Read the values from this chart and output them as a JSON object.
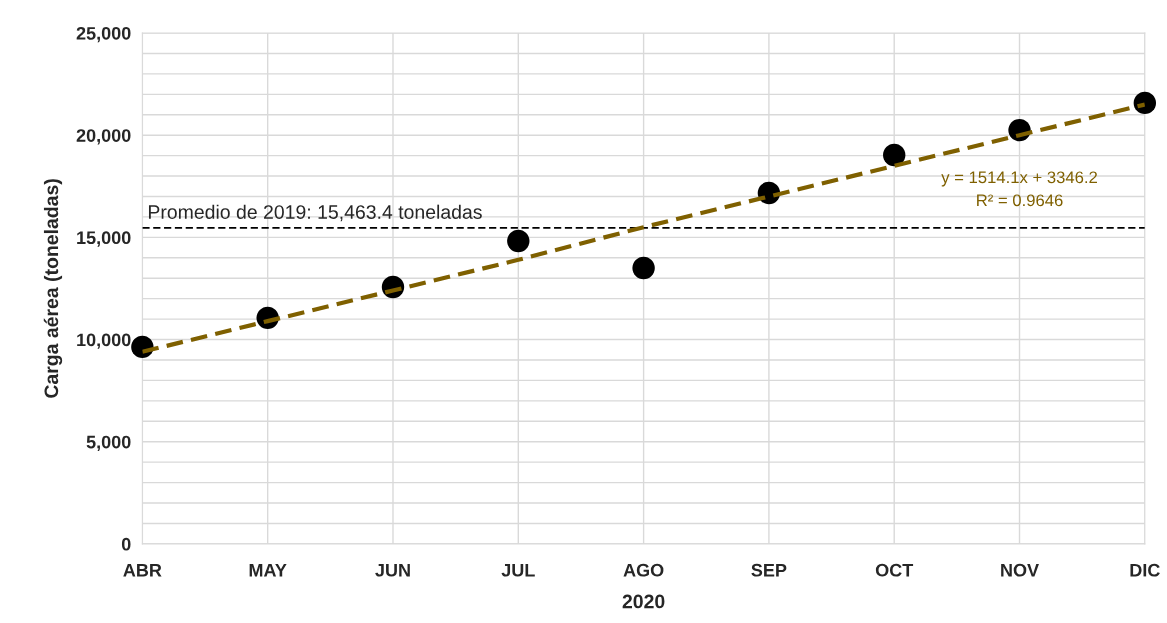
{
  "chart_data": {
    "type": "scatter",
    "xlabel": "2020",
    "ylabel": "Carga aérea (toneladas)",
    "categories": [
      "ABR",
      "MAY",
      "JUN",
      "JUL",
      "AGO",
      "SEP",
      "OCT",
      "NOV",
      "DIC"
    ],
    "series": [
      {
        "color": "#000000",
        "marker": "circle",
        "values": [
          9640,
          11060,
          12570,
          14820,
          13500,
          17170,
          19030,
          20250,
          21580
        ]
      },
      {
        "type": "line",
        "color": "#7f6000",
        "line_style": "dashed",
        "marker": "none",
        "values": [
          9400,
          10900,
          12400,
          13900,
          15500,
          17000,
          18500,
          20000,
          21500
        ]
      }
    ],
    "ylim": [
      0,
      25000
    ],
    "yticks": [
      {
        "value": 0,
        "label": "0"
      },
      {
        "value": 1000,
        "label": null
      },
      {
        "value": 2000,
        "label": null
      },
      {
        "value": 3000,
        "label": null
      },
      {
        "value": 4000,
        "label": null
      },
      {
        "value": 5000,
        "label": "5,000"
      },
      {
        "value": 6000,
        "label": null
      },
      {
        "value": 7000,
        "label": null
      },
      {
        "value": 8000,
        "label": null
      },
      {
        "value": 9000,
        "label": null
      },
      {
        "value": 10000,
        "label": "10,000"
      },
      {
        "value": 11000,
        "label": null
      },
      {
        "value": 12000,
        "label": null
      },
      {
        "value": 13000,
        "label": null
      },
      {
        "value": 14000,
        "label": null
      },
      {
        "value": 15000,
        "label": "15,000"
      },
      {
        "value": 16000,
        "label": null
      },
      {
        "value": 17000,
        "label": null
      },
      {
        "value": 18000,
        "label": null
      },
      {
        "value": 19000,
        "label": null
      },
      {
        "value": 20000,
        "label": "20,000"
      },
      {
        "value": 21000,
        "label": null
      },
      {
        "value": 22000,
        "label": null
      },
      {
        "value": 23000,
        "label": null
      },
      {
        "value": 24000,
        "label": null
      },
      {
        "value": 25000,
        "label": "25,000"
      }
    ],
    "ref_lines": [
      {
        "axis": "y",
        "value": 15463.4,
        "label": "Promedio de 2019: 15,463.4 toneladas",
        "color": "#000000",
        "line_style": "dashed"
      }
    ],
    "annotations": [
      "y = 1514.1x + 3346.2",
      "R² = 0.9646"
    ],
    "grid": true,
    "legend": false
  }
}
